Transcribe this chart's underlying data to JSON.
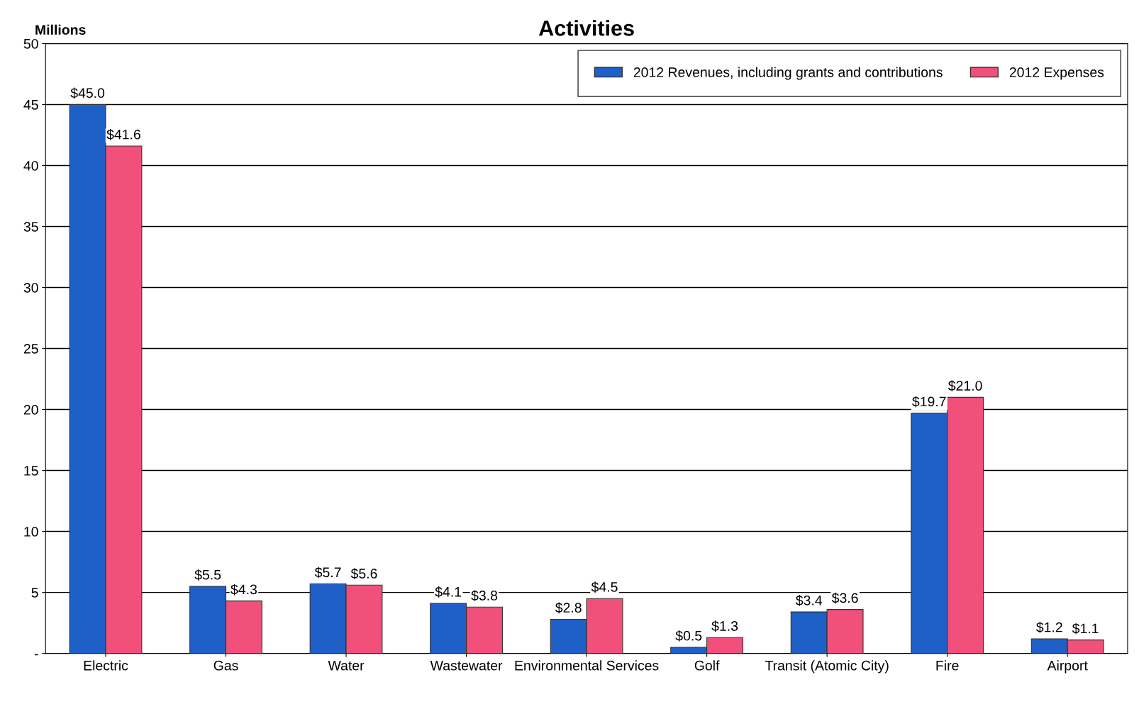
{
  "chart_data": {
    "type": "bar",
    "title": "Activities",
    "ylabel": "Millions",
    "categories": [
      "Electric",
      "Gas",
      "Water",
      "Wastewater",
      "Environmental Services",
      "Golf",
      "Transit (Atomic City)",
      "Fire",
      "Airport"
    ],
    "series": [
      {
        "name": "2012 Revenues, including grants and contributions",
        "color": "#1f5fc8",
        "values": [
          45.0,
          5.5,
          5.7,
          4.1,
          2.8,
          0.5,
          3.4,
          19.7,
          1.2
        ],
        "value_labels": [
          "$45.0",
          "$5.5",
          "$5.7",
          "$4.1",
          "$2.8",
          "$0.5",
          "$3.4",
          "$19.7",
          "$1.2"
        ]
      },
      {
        "name": "2012 Expenses",
        "color": "#f0507a",
        "values": [
          41.6,
          4.3,
          5.6,
          3.8,
          4.5,
          1.3,
          3.6,
          21.0,
          1.1
        ],
        "value_labels": [
          "$41.6",
          "$4.3",
          "$5.6",
          "$3.8",
          "$4.5",
          "$1.3",
          "$3.6",
          "$21.0",
          "$1.1"
        ]
      }
    ],
    "ylim": [
      0,
      50
    ],
    "yticks": [
      {
        "value": 0,
        "label": "-"
      },
      5,
      10,
      15,
      20,
      25,
      30,
      35,
      40,
      45,
      50
    ],
    "grid": "y",
    "legend": "top right"
  }
}
